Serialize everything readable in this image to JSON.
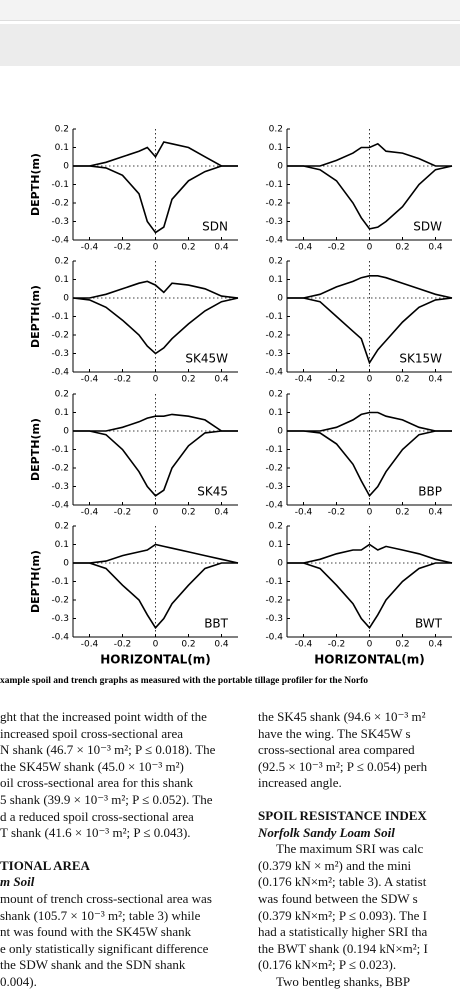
{
  "chart_data": [
    {
      "type": "line",
      "label": "SDN",
      "ylabel": "DEPTH(m)",
      "x": [
        -0.5,
        -0.4,
        -0.3,
        -0.2,
        -0.1,
        -0.05,
        0,
        0.05,
        0.1,
        0.2,
        0.3,
        0.4,
        0.5
      ],
      "series": [
        {
          "color": "#000000",
          "values": [
            0,
            0,
            0.02,
            0.05,
            0.08,
            0.1,
            0.05,
            0.13,
            0.12,
            0.1,
            0.05,
            0,
            0
          ]
        },
        {
          "color": "#000000",
          "values": [
            0,
            0,
            -0.01,
            -0.05,
            -0.15,
            -0.3,
            -0.36,
            -0.33,
            -0.18,
            -0.08,
            -0.03,
            0,
            0
          ]
        }
      ],
      "xlim": [
        -0.5,
        0.5
      ],
      "ylim": [
        -0.4,
        0.2
      ],
      "xticks": [
        -0.4,
        -0.2,
        0,
        0.2,
        0.4
      ],
      "yticks": [
        0.2,
        0.1,
        0,
        -0.1,
        -0.2,
        -0.3,
        -0.4
      ]
    },
    {
      "type": "line",
      "label": "SDW",
      "x": [
        -0.5,
        -0.4,
        -0.3,
        -0.2,
        -0.1,
        -0.05,
        0,
        0.05,
        0.1,
        0.2,
        0.3,
        0.4,
        0.5
      ],
      "series": [
        {
          "color": "#000000",
          "values": [
            0,
            0,
            0,
            0.03,
            0.07,
            0.1,
            0.1,
            0.12,
            0.08,
            0.07,
            0.04,
            0,
            0
          ]
        },
        {
          "color": "#000000",
          "values": [
            0,
            0,
            -0.02,
            -0.08,
            -0.2,
            -0.28,
            -0.34,
            -0.33,
            -0.3,
            -0.22,
            -0.1,
            -0.02,
            0
          ]
        }
      ],
      "xlim": [
        -0.5,
        0.5
      ],
      "ylim": [
        -0.4,
        0.2
      ],
      "xticks": [
        -0.4,
        -0.2,
        0,
        0.2,
        0.4
      ],
      "yticks": [
        0.2,
        0.1,
        0,
        -0.1,
        -0.2,
        -0.3,
        -0.4
      ]
    },
    {
      "type": "line",
      "label": "SK45W",
      "ylabel": "DEPTH(m)",
      "x": [
        -0.5,
        -0.4,
        -0.3,
        -0.2,
        -0.1,
        -0.05,
        0,
        0.05,
        0.1,
        0.2,
        0.3,
        0.4,
        0.5
      ],
      "series": [
        {
          "color": "#000000",
          "values": [
            0,
            0,
            0.02,
            0.05,
            0.08,
            0.09,
            0.07,
            0.03,
            0.08,
            0.07,
            0.05,
            0.01,
            0
          ]
        },
        {
          "color": "#000000",
          "values": [
            0,
            -0.01,
            -0.05,
            -0.12,
            -0.2,
            -0.26,
            -0.3,
            -0.27,
            -0.22,
            -0.14,
            -0.07,
            -0.02,
            0
          ]
        }
      ],
      "xlim": [
        -0.5,
        0.5
      ],
      "ylim": [
        -0.4,
        0.2
      ],
      "xticks": [
        -0.4,
        -0.2,
        0,
        0.2,
        0.4
      ],
      "yticks": [
        0.2,
        0.1,
        0,
        -0.1,
        -0.2,
        -0.3,
        -0.4
      ]
    },
    {
      "type": "line",
      "label": "SK15W",
      "x": [
        -0.5,
        -0.4,
        -0.3,
        -0.2,
        -0.1,
        -0.05,
        0,
        0.05,
        0.1,
        0.2,
        0.3,
        0.4,
        0.5
      ],
      "series": [
        {
          "color": "#000000",
          "values": [
            0,
            0,
            0.02,
            0.06,
            0.09,
            0.11,
            0.12,
            0.12,
            0.11,
            0.08,
            0.05,
            0.02,
            0
          ]
        },
        {
          "color": "#000000",
          "values": [
            0,
            0,
            -0.02,
            -0.1,
            -0.18,
            -0.22,
            -0.35,
            -0.28,
            -0.23,
            -0.13,
            -0.05,
            -0.01,
            0
          ]
        }
      ],
      "xlim": [
        -0.5,
        0.5
      ],
      "ylim": [
        -0.4,
        0.2
      ],
      "xticks": [
        -0.4,
        -0.2,
        0,
        0.2,
        0.4
      ],
      "yticks": [
        0.2,
        0.1,
        0,
        -0.1,
        -0.2,
        -0.3,
        -0.4
      ]
    },
    {
      "type": "line",
      "label": "SK45",
      "ylabel": "DEPTH(m)",
      "x": [
        -0.5,
        -0.4,
        -0.3,
        -0.2,
        -0.1,
        -0.05,
        0,
        0.05,
        0.1,
        0.2,
        0.3,
        0.4,
        0.5
      ],
      "series": [
        {
          "color": "#000000",
          "values": [
            0,
            0,
            0,
            0.02,
            0.05,
            0.07,
            0.08,
            0.08,
            0.09,
            0.08,
            0.06,
            0,
            0
          ]
        },
        {
          "color": "#000000",
          "values": [
            0,
            0,
            -0.02,
            -0.1,
            -0.22,
            -0.3,
            -0.35,
            -0.32,
            -0.2,
            -0.08,
            -0.01,
            0,
            0
          ]
        }
      ],
      "xlim": [
        -0.5,
        0.5
      ],
      "ylim": [
        -0.4,
        0.2
      ],
      "xticks": [
        -0.4,
        -0.2,
        0,
        0.2,
        0.4
      ],
      "yticks": [
        0.2,
        0.1,
        0,
        -0.1,
        -0.2,
        -0.3,
        -0.4
      ]
    },
    {
      "type": "line",
      "label": "BBP",
      "x": [
        -0.5,
        -0.4,
        -0.3,
        -0.2,
        -0.1,
        -0.05,
        0,
        0.05,
        0.1,
        0.2,
        0.3,
        0.4,
        0.5
      ],
      "series": [
        {
          "color": "#000000",
          "values": [
            0,
            0,
            0,
            0.02,
            0.06,
            0.09,
            0.1,
            0.1,
            0.08,
            0.06,
            0.02,
            0,
            0
          ]
        },
        {
          "color": "#000000",
          "values": [
            0,
            0,
            -0.01,
            -0.07,
            -0.18,
            -0.27,
            -0.35,
            -0.3,
            -0.22,
            -0.1,
            -0.02,
            0,
            0
          ]
        }
      ],
      "xlim": [
        -0.5,
        0.5
      ],
      "ylim": [
        -0.4,
        0.2
      ],
      "xticks": [
        -0.4,
        -0.2,
        0,
        0.2,
        0.4
      ],
      "yticks": [
        0.2,
        0.1,
        0,
        -0.1,
        -0.2,
        -0.3,
        -0.4
      ]
    },
    {
      "type": "line",
      "label": "BBT",
      "ylabel": "DEPTH(m)",
      "xlabel": "HORIZONTAL(m)",
      "x": [
        -0.5,
        -0.4,
        -0.3,
        -0.2,
        -0.1,
        -0.05,
        0,
        0.05,
        0.1,
        0.2,
        0.3,
        0.4,
        0.5
      ],
      "series": [
        {
          "color": "#000000",
          "values": [
            0,
            0,
            0.01,
            0.04,
            0.06,
            0.07,
            0.1,
            0.09,
            0.08,
            0.06,
            0.04,
            0.02,
            0
          ]
        },
        {
          "color": "#000000",
          "values": [
            0,
            0,
            -0.03,
            -0.12,
            -0.2,
            -0.28,
            -0.35,
            -0.3,
            -0.22,
            -0.12,
            -0.03,
            0,
            0
          ]
        }
      ],
      "xlim": [
        -0.5,
        0.5
      ],
      "ylim": [
        -0.4,
        0.2
      ],
      "xticks": [
        -0.4,
        -0.2,
        0,
        0.2,
        0.4
      ],
      "yticks": [
        0.2,
        0.1,
        0,
        -0.1,
        -0.2,
        -0.3,
        -0.4
      ]
    },
    {
      "type": "line",
      "label": "BWT",
      "xlabel": "HORIZONTAL(m)",
      "x": [
        -0.5,
        -0.4,
        -0.3,
        -0.2,
        -0.1,
        -0.05,
        0,
        0.05,
        0.1,
        0.2,
        0.3,
        0.4,
        0.5
      ],
      "series": [
        {
          "color": "#000000",
          "values": [
            0,
            0,
            0.02,
            0.05,
            0.07,
            0.07,
            0.1,
            0.07,
            0.09,
            0.07,
            0.05,
            0.02,
            0
          ]
        },
        {
          "color": "#000000",
          "values": [
            0,
            0,
            -0.03,
            -0.12,
            -0.22,
            -0.3,
            -0.35,
            -0.28,
            -0.2,
            -0.1,
            -0.03,
            0,
            0
          ]
        }
      ],
      "xlim": [
        -0.5,
        0.5
      ],
      "ylim": [
        -0.4,
        0.2
      ],
      "xticks": [
        -0.4,
        -0.2,
        0,
        0.2,
        0.4
      ],
      "yticks": [
        0.2,
        0.1,
        0,
        -0.1,
        -0.2,
        -0.3,
        -0.4
      ]
    }
  ],
  "caption": "xample spoil and trench graphs as measured with the portable tillage profiler for the Norfo",
  "left_column": {
    "para1": [
      "ght that the increased point width of the",
      " increased spoil cross-sectional area",
      "N shank (46.7 × 10⁻³ m²; P ≤ 0.018). The",
      "the SK45W shank (45.0 × 10⁻³ m²)",
      "oil cross-sectional area for this shank",
      "5 shank (39.9 × 10⁻³ m²; P ≤ 0.052). The",
      "d a reduced spoil cross-sectional area",
      "T shank (41.6 × 10⁻³ m²; P ≤ 0.043)."
    ],
    "heading": "TIONAL AREA",
    "subheading": "m Soil",
    "para2": [
      "mount of trench cross-sectional area was",
      " shank (105.7 × 10⁻³ m²; table 3) while",
      "nt was found with the SK45W shank",
      "e only statistically significant difference",
      " the SDW shank and the SDN shank",
      " 0.004)."
    ]
  },
  "right_column": {
    "para1": [
      "the SK45 shank (94.6 × 10⁻³ m²",
      "have the wing. The SK45W s",
      "cross-sectional area compared",
      "(92.5 × 10⁻³ m²; P ≤ 0.054) perh",
      "increased angle."
    ],
    "heading": "SPOIL RESISTANCE INDEX",
    "subheading": "Norfolk Sandy Loam Soil",
    "para2": [
      "The maximum SRI was calc",
      "(0.379 kN × m²) and the mini",
      "(0.176 kN×m²; table 3). A statist",
      "was found between the SDW s",
      "(0.379 kN×m²; P ≤ 0.093). The I",
      "had a statistically higher SRI tha",
      "the BWT shank (0.194 kN×m²; I",
      "(0.176 kN×m²; P ≤ 0.023).",
      "Two bentleg shanks, BBP"
    ]
  }
}
